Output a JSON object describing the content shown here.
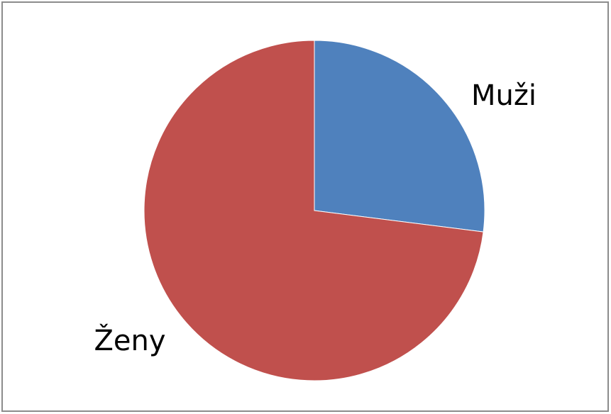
{
  "chart_data": {
    "type": "pie",
    "categories": [
      "Muži",
      "Ženy"
    ],
    "values": [
      27,
      73
    ],
    "colors": [
      "#4f81bd",
      "#c0504d"
    ]
  }
}
